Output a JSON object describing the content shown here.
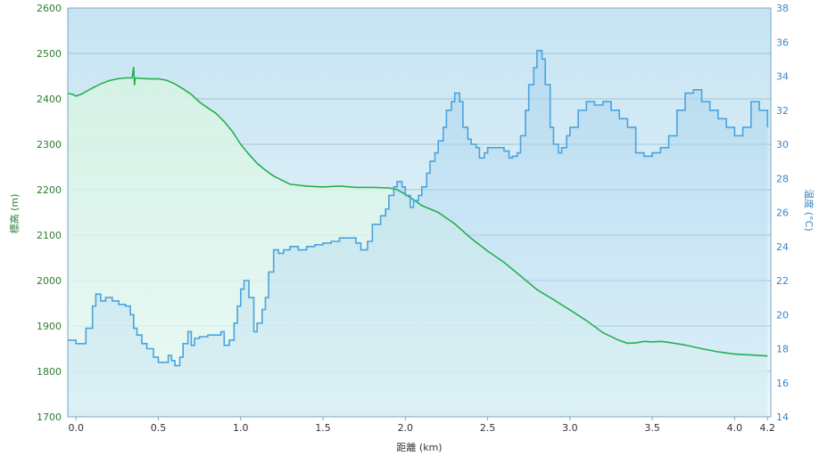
{
  "chart_data": {
    "type": "line",
    "title": "",
    "xlabel": "距離 (km)",
    "ylabel": "標高 (m)",
    "y2label": "温度 (°C)",
    "xlim": [
      -0.05,
      4.22
    ],
    "ylim": [
      1700,
      2600
    ],
    "y2lim": [
      14,
      38
    ],
    "x_ticks": [
      "0.0",
      "0.5",
      "1.0",
      "1.5",
      "2.0",
      "2.5",
      "3.0",
      "3.5",
      "4.0",
      "4.2"
    ],
    "x_tick_values": [
      0.0,
      0.5,
      1.0,
      1.5,
      2.0,
      2.5,
      3.0,
      3.5,
      4.0,
      4.2
    ],
    "y_ticks": [
      "1700",
      "1800",
      "1900",
      "2000",
      "2100",
      "2200",
      "2300",
      "2400",
      "2500",
      "2600"
    ],
    "y2_ticks": [
      "14",
      "16",
      "18",
      "20",
      "22",
      "24",
      "26",
      "28",
      "30",
      "32",
      "34",
      "36",
      "38"
    ],
    "grid": true,
    "colors": {
      "elevation_line": "#22b14c",
      "temperature_line": "#4aa3df",
      "plot_bg_top": "#c6e4f2",
      "plot_bg_bottom": "#eaf6fb",
      "axis_frame": "#7aa7c7"
    },
    "series": [
      {
        "name": "",
        "axis": "left",
        "x": [
          -0.05,
          -0.02,
          0.0,
          0.03,
          0.06,
          0.1,
          0.15,
          0.2,
          0.25,
          0.3,
          0.34,
          0.35,
          0.355,
          0.36,
          0.4,
          0.45,
          0.5,
          0.55,
          0.6,
          0.65,
          0.7,
          0.75,
          0.8,
          0.85,
          0.9,
          0.95,
          1.0,
          1.05,
          1.1,
          1.15,
          1.2,
          1.3,
          1.4,
          1.5,
          1.6,
          1.7,
          1.8,
          1.9,
          1.95,
          2.0,
          2.05,
          2.1,
          2.2,
          2.3,
          2.4,
          2.5,
          2.6,
          2.7,
          2.8,
          2.9,
          3.0,
          3.1,
          3.2,
          3.3,
          3.35,
          3.4,
          3.45,
          3.5,
          3.55,
          3.6,
          3.7,
          3.8,
          3.9,
          4.0,
          4.1,
          4.2
        ],
        "values": [
          2412,
          2410,
          2406,
          2410,
          2416,
          2424,
          2433,
          2440,
          2444,
          2446,
          2446,
          2470,
          2430,
          2446,
          2445,
          2444,
          2444,
          2441,
          2433,
          2422,
          2410,
          2393,
          2380,
          2368,
          2350,
          2328,
          2300,
          2278,
          2258,
          2243,
          2230,
          2212,
          2208,
          2206,
          2208,
          2205,
          2205,
          2204,
          2200,
          2190,
          2178,
          2165,
          2150,
          2125,
          2093,
          2065,
          2040,
          2010,
          1980,
          1958,
          1935,
          1912,
          1885,
          1868,
          1862,
          1863,
          1866,
          1865,
          1866,
          1864,
          1858,
          1850,
          1843,
          1838,
          1836,
          1834
        ]
      },
      {
        "name": "",
        "axis": "right",
        "x": [
          -0.05,
          0.0,
          0.03,
          0.05,
          0.06,
          0.1,
          0.12,
          0.15,
          0.18,
          0.22,
          0.26,
          0.3,
          0.33,
          0.35,
          0.37,
          0.4,
          0.43,
          0.47,
          0.5,
          0.53,
          0.56,
          0.58,
          0.6,
          0.63,
          0.65,
          0.68,
          0.7,
          0.72,
          0.75,
          0.8,
          0.85,
          0.88,
          0.9,
          0.93,
          0.96,
          0.98,
          1.0,
          1.02,
          1.05,
          1.08,
          1.1,
          1.13,
          1.15,
          1.17,
          1.2,
          1.23,
          1.26,
          1.3,
          1.35,
          1.4,
          1.45,
          1.5,
          1.55,
          1.6,
          1.65,
          1.7,
          1.73,
          1.75,
          1.77,
          1.8,
          1.85,
          1.88,
          1.9,
          1.93,
          1.95,
          1.98,
          2.0,
          2.03,
          2.05,
          2.08,
          2.1,
          2.13,
          2.15,
          2.18,
          2.2,
          2.23,
          2.25,
          2.28,
          2.3,
          2.33,
          2.35,
          2.38,
          2.4,
          2.43,
          2.45,
          2.48,
          2.5,
          2.55,
          2.6,
          2.63,
          2.65,
          2.68,
          2.7,
          2.73,
          2.75,
          2.78,
          2.8,
          2.83,
          2.85,
          2.88,
          2.9,
          2.93,
          2.95,
          2.98,
          3.0,
          3.05,
          3.1,
          3.15,
          3.2,
          3.25,
          3.3,
          3.35,
          3.4,
          3.45,
          3.5,
          3.55,
          3.6,
          3.65,
          3.7,
          3.75,
          3.8,
          3.85,
          3.9,
          3.95,
          4.0,
          4.05,
          4.1,
          4.15,
          4.2
        ],
        "values": [
          18.5,
          18.3,
          18.3,
          18.3,
          19.2,
          20.5,
          21.2,
          20.8,
          21.0,
          20.8,
          20.6,
          20.5,
          20.0,
          19.2,
          18.8,
          18.3,
          18.0,
          17.5,
          17.2,
          17.2,
          17.6,
          17.3,
          17.0,
          17.5,
          18.3,
          19.0,
          18.2,
          18.6,
          18.7,
          18.8,
          18.8,
          19.0,
          18.2,
          18.5,
          19.5,
          20.5,
          21.5,
          22.0,
          21.0,
          19.0,
          19.5,
          20.3,
          21.0,
          22.5,
          23.8,
          23.6,
          23.8,
          24.0,
          23.8,
          24.0,
          24.1,
          24.2,
          24.3,
          24.5,
          24.5,
          24.2,
          23.8,
          23.8,
          24.3,
          25.3,
          25.8,
          26.2,
          27.0,
          27.5,
          27.8,
          27.5,
          27.0,
          26.3,
          26.7,
          27.0,
          27.5,
          28.3,
          29.0,
          29.5,
          30.2,
          31.0,
          32.0,
          32.5,
          33.0,
          32.5,
          31.0,
          30.3,
          30.0,
          29.8,
          29.2,
          29.5,
          29.8,
          29.8,
          29.6,
          29.2,
          29.3,
          29.5,
          30.5,
          32.0,
          33.5,
          34.5,
          35.5,
          35.0,
          33.5,
          31.0,
          30.0,
          29.5,
          29.8,
          30.5,
          31.0,
          32.0,
          32.5,
          32.3,
          32.5,
          32.0,
          31.5,
          31.0,
          29.5,
          29.3,
          29.5,
          29.8,
          30.5,
          32.0,
          33.0,
          33.2,
          32.5,
          32.0,
          31.5,
          31.0,
          30.5,
          31.0,
          32.5,
          32.0,
          31.0
        ]
      }
    ]
  }
}
